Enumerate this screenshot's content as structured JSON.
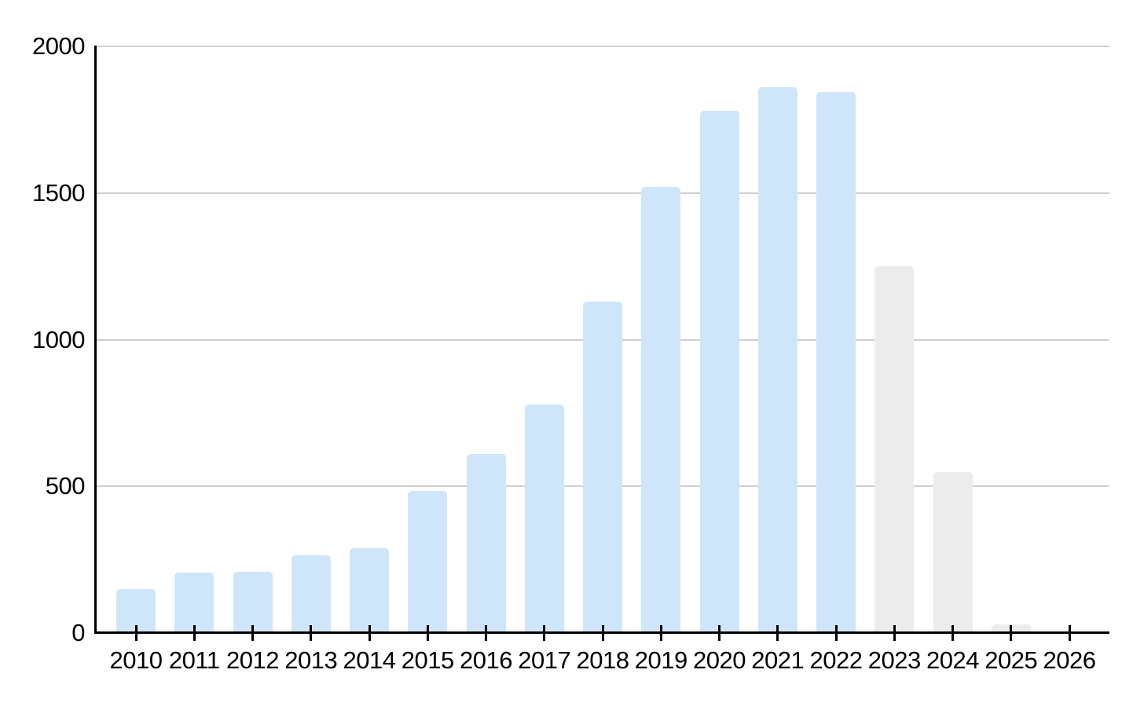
{
  "chart_data": {
    "type": "bar",
    "title": "",
    "xlabel": "",
    "ylabel": "",
    "categories": [
      "2010",
      "2011",
      "2012",
      "2013",
      "2014",
      "2015",
      "2016",
      "2017",
      "2018",
      "2019",
      "2020",
      "2021",
      "2022",
      "2023",
      "2024",
      "2025",
      "2026"
    ],
    "values": [
      150,
      205,
      210,
      265,
      290,
      485,
      610,
      780,
      1130,
      1520,
      1780,
      1860,
      1845,
      1250,
      550,
      30,
      0
    ],
    "bar_styles": [
      "actual",
      "actual",
      "actual",
      "actual",
      "actual",
      "actual",
      "actual",
      "actual",
      "actual",
      "actual",
      "actual",
      "actual",
      "actual",
      "estimate",
      "estimate",
      "estimate",
      "none"
    ],
    "ylim": [
      0,
      2000
    ],
    "yticks": [
      0,
      500,
      1000,
      1500,
      2000
    ],
    "ytick_labels": [
      "0",
      "500",
      "1000",
      "1500",
      "2000"
    ],
    "grid": true,
    "legend": "none",
    "colors": {
      "bar_actual": "#cfe5fa",
      "bar_estimate": "#ececec",
      "gridline": "#cfcfcf",
      "axis": "#000000",
      "text": "#000000",
      "background": "#ffffff"
    }
  }
}
